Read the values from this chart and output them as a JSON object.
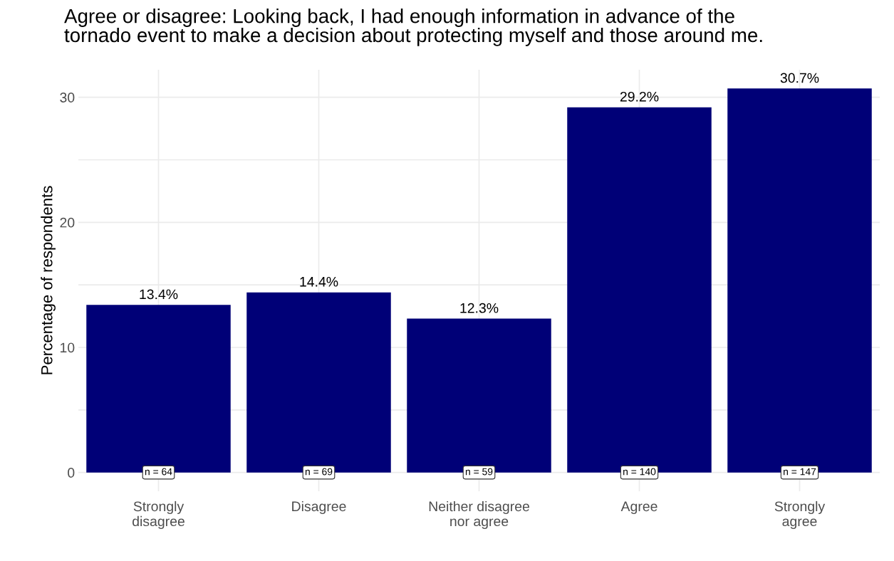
{
  "chart_data": {
    "type": "bar",
    "title": "Agree or disagree: Looking back, I had enough information in advance of the\ntornado event to make a decision about protecting myself and those around me.",
    "ylabel": "Percentage of respondents",
    "categories": [
      "Strongly\ndisagree",
      "Disagree",
      "Neither disagree\nnor agree",
      "Agree",
      "Strongly\nagree"
    ],
    "values": [
      13.4,
      14.4,
      12.3,
      29.2,
      30.7
    ],
    "value_labels": [
      "13.4%",
      "14.4%",
      "12.3%",
      "29.2%",
      "30.7%"
    ],
    "color": "#000077",
    "ylim": [
      -1.5,
      32.2
    ],
    "yticks": [
      0,
      {
        "value": 5,
        "label": null
      },
      10,
      {
        "value": 15,
        "label": null
      },
      20,
      {
        "value": 25,
        "label": null
      },
      30
    ],
    "grid": true,
    "annotations": [
      {
        "text": "n = 64",
        "x": "Strongly\ndisagree",
        "y": 0
      },
      {
        "text": "n = 69",
        "x": "Disagree",
        "y": 0
      },
      {
        "text": "n = 59",
        "x": "Neither disagree\nnor agree",
        "y": 0
      },
      {
        "text": "n = 140",
        "x": "Agree",
        "y": 0
      },
      {
        "text": "n = 147",
        "x": "Strongly\nagree",
        "y": 0
      }
    ]
  }
}
